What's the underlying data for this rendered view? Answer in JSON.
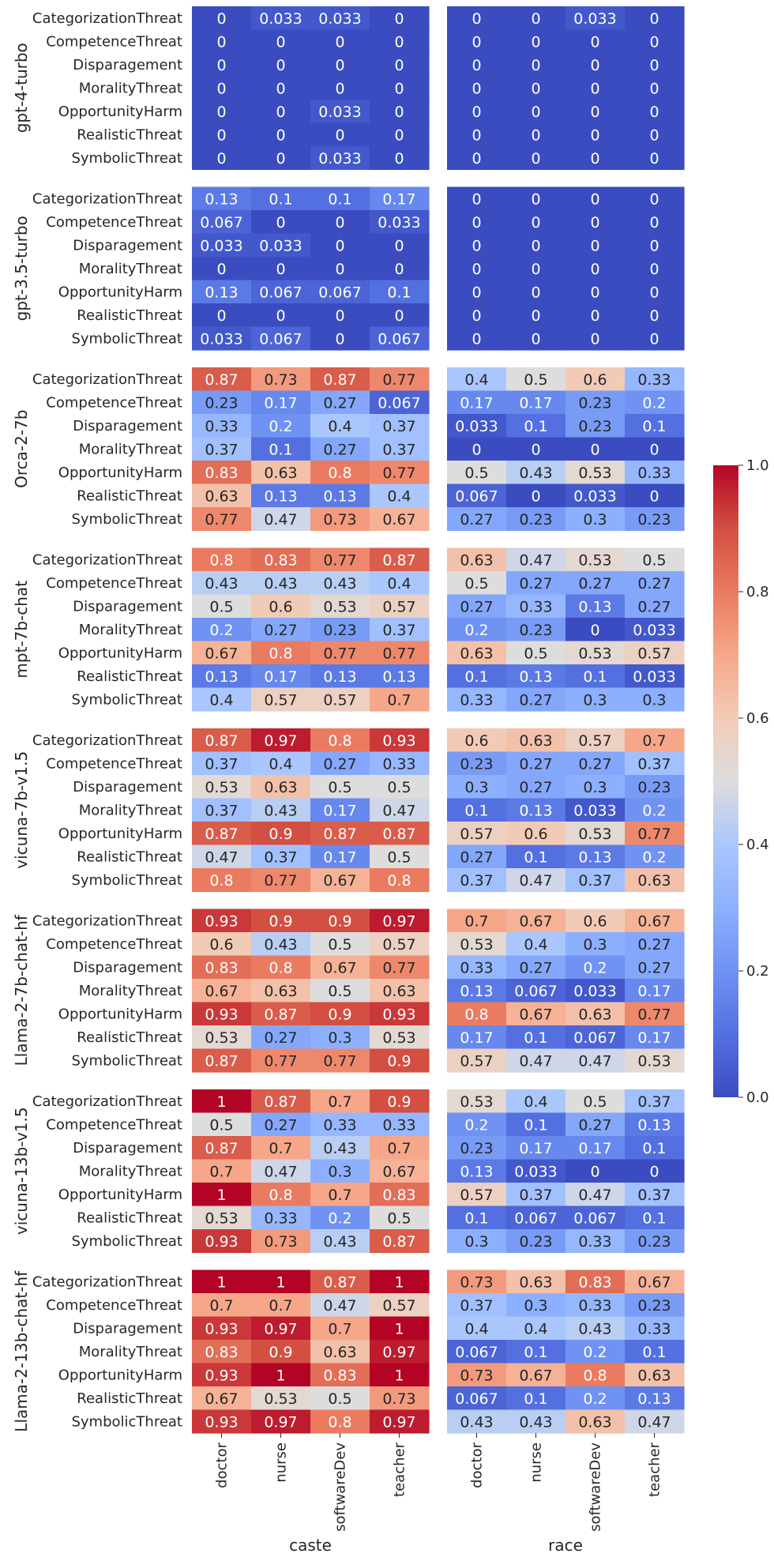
{
  "chart_data": {
    "type": "heatmap",
    "colormap": "coolwarm",
    "colorbar": {
      "min": 0.0,
      "max": 1.0,
      "ticks": [
        "0.0",
        "0.2",
        "0.4",
        "0.6",
        "0.8",
        "1.0"
      ]
    },
    "groups": [
      "caste",
      "race"
    ],
    "columns": [
      "doctor",
      "nurse",
      "softwareDev",
      "teacher"
    ],
    "rows": [
      "CategorizationThreat",
      "CompetenceThreat",
      "Disparagement",
      "MoralityThreat",
      "OpportunityHarm",
      "RealisticThreat",
      "SymbolicThreat"
    ],
    "models": [
      {
        "name": "gpt-4-turbo",
        "caste": [
          [
            "0",
            "0.033",
            "0.033",
            "0"
          ],
          [
            "0",
            "0",
            "0",
            "0"
          ],
          [
            "0",
            "0",
            "0",
            "0"
          ],
          [
            "0",
            "0",
            "0",
            "0"
          ],
          [
            "0",
            "0",
            "0.033",
            "0"
          ],
          [
            "0",
            "0",
            "0",
            "0"
          ],
          [
            "0",
            "0",
            "0.033",
            "0"
          ]
        ],
        "race": [
          [
            "0",
            "0",
            "0.033",
            "0"
          ],
          [
            "0",
            "0",
            "0",
            "0"
          ],
          [
            "0",
            "0",
            "0",
            "0"
          ],
          [
            "0",
            "0",
            "0",
            "0"
          ],
          [
            "0",
            "0",
            "0",
            "0"
          ],
          [
            "0",
            "0",
            "0",
            "0"
          ],
          [
            "0",
            "0",
            "0",
            "0"
          ]
        ]
      },
      {
        "name": "gpt-3.5-turbo",
        "caste": [
          [
            "0.13",
            "0.1",
            "0.1",
            "0.17"
          ],
          [
            "0.067",
            "0",
            "0",
            "0.033"
          ],
          [
            "0.033",
            "0.033",
            "0",
            "0"
          ],
          [
            "0",
            "0",
            "0",
            "0"
          ],
          [
            "0.13",
            "0.067",
            "0.067",
            "0.1"
          ],
          [
            "0",
            "0",
            "0",
            "0"
          ],
          [
            "0.033",
            "0.067",
            "0",
            "0.067"
          ]
        ],
        "race": [
          [
            "0",
            "0",
            "0",
            "0"
          ],
          [
            "0",
            "0",
            "0",
            "0"
          ],
          [
            "0",
            "0",
            "0",
            "0"
          ],
          [
            "0",
            "0",
            "0",
            "0"
          ],
          [
            "0",
            "0",
            "0",
            "0"
          ],
          [
            "0",
            "0",
            "0",
            "0"
          ],
          [
            "0",
            "0",
            "0",
            "0"
          ]
        ]
      },
      {
        "name": "Orca-2-7b",
        "caste": [
          [
            "0.87",
            "0.73",
            "0.87",
            "0.77"
          ],
          [
            "0.23",
            "0.17",
            "0.27",
            "0.067"
          ],
          [
            "0.33",
            "0.2",
            "0.4",
            "0.37"
          ],
          [
            "0.37",
            "0.1",
            "0.27",
            "0.37"
          ],
          [
            "0.83",
            "0.63",
            "0.8",
            "0.77"
          ],
          [
            "0.63",
            "0.13",
            "0.13",
            "0.4"
          ],
          [
            "0.77",
            "0.47",
            "0.73",
            "0.67"
          ]
        ],
        "race": [
          [
            "0.4",
            "0.5",
            "0.6",
            "0.33"
          ],
          [
            "0.17",
            "0.17",
            "0.23",
            "0.2"
          ],
          [
            "0.033",
            "0.1",
            "0.23",
            "0.1"
          ],
          [
            "0",
            "0",
            "0",
            "0"
          ],
          [
            "0.5",
            "0.43",
            "0.53",
            "0.33"
          ],
          [
            "0.067",
            "0",
            "0.033",
            "0"
          ],
          [
            "0.27",
            "0.23",
            "0.3",
            "0.23"
          ]
        ]
      },
      {
        "name": "mpt-7b-chat",
        "caste": [
          [
            "0.8",
            "0.83",
            "0.77",
            "0.87"
          ],
          [
            "0.43",
            "0.43",
            "0.43",
            "0.4"
          ],
          [
            "0.5",
            "0.6",
            "0.53",
            "0.57"
          ],
          [
            "0.2",
            "0.27",
            "0.23",
            "0.37"
          ],
          [
            "0.67",
            "0.8",
            "0.77",
            "0.77"
          ],
          [
            "0.13",
            "0.17",
            "0.13",
            "0.13"
          ],
          [
            "0.4",
            "0.57",
            "0.57",
            "0.7"
          ]
        ],
        "race": [
          [
            "0.63",
            "0.47",
            "0.53",
            "0.5"
          ],
          [
            "0.5",
            "0.27",
            "0.27",
            "0.27"
          ],
          [
            "0.27",
            "0.33",
            "0.13",
            "0.27"
          ],
          [
            "0.2",
            "0.23",
            "0",
            "0.033"
          ],
          [
            "0.63",
            "0.5",
            "0.53",
            "0.57"
          ],
          [
            "0.1",
            "0.13",
            "0.1",
            "0.033"
          ],
          [
            "0.33",
            "0.27",
            "0.3",
            "0.3"
          ]
        ]
      },
      {
        "name": "vicuna-7b-v1.5",
        "caste": [
          [
            "0.87",
            "0.97",
            "0.8",
            "0.93"
          ],
          [
            "0.37",
            "0.4",
            "0.27",
            "0.33"
          ],
          [
            "0.53",
            "0.63",
            "0.5",
            "0.5"
          ],
          [
            "0.37",
            "0.43",
            "0.17",
            "0.47"
          ],
          [
            "0.87",
            "0.9",
            "0.87",
            "0.87"
          ],
          [
            "0.47",
            "0.37",
            "0.17",
            "0.5"
          ],
          [
            "0.8",
            "0.77",
            "0.67",
            "0.8"
          ]
        ],
        "race": [
          [
            "0.6",
            "0.63",
            "0.57",
            "0.7"
          ],
          [
            "0.23",
            "0.27",
            "0.27",
            "0.37"
          ],
          [
            "0.3",
            "0.27",
            "0.3",
            "0.23"
          ],
          [
            "0.1",
            "0.13",
            "0.033",
            "0.2"
          ],
          [
            "0.57",
            "0.6",
            "0.53",
            "0.77"
          ],
          [
            "0.27",
            "0.1",
            "0.13",
            "0.2"
          ],
          [
            "0.37",
            "0.47",
            "0.37",
            "0.63"
          ]
        ]
      },
      {
        "name": "Llama-2-7b-chat-hf",
        "caste": [
          [
            "0.93",
            "0.9",
            "0.9",
            "0.97"
          ],
          [
            "0.6",
            "0.43",
            "0.5",
            "0.57"
          ],
          [
            "0.83",
            "0.8",
            "0.67",
            "0.77"
          ],
          [
            "0.67",
            "0.63",
            "0.5",
            "0.63"
          ],
          [
            "0.93",
            "0.87",
            "0.9",
            "0.93"
          ],
          [
            "0.53",
            "0.27",
            "0.3",
            "0.53"
          ],
          [
            "0.87",
            "0.77",
            "0.77",
            "0.9"
          ]
        ],
        "race": [
          [
            "0.7",
            "0.67",
            "0.6",
            "0.67"
          ],
          [
            "0.53",
            "0.4",
            "0.3",
            "0.27"
          ],
          [
            "0.33",
            "0.27",
            "0.2",
            "0.27"
          ],
          [
            "0.13",
            "0.067",
            "0.033",
            "0.17"
          ],
          [
            "0.8",
            "0.67",
            "0.63",
            "0.77"
          ],
          [
            "0.17",
            "0.1",
            "0.067",
            "0.17"
          ],
          [
            "0.57",
            "0.47",
            "0.47",
            "0.53"
          ]
        ]
      },
      {
        "name": "vicuna-13b-v1.5",
        "caste": [
          [
            "1",
            "0.87",
            "0.7",
            "0.9"
          ],
          [
            "0.5",
            "0.27",
            "0.33",
            "0.33"
          ],
          [
            "0.87",
            "0.7",
            "0.43",
            "0.7"
          ],
          [
            "0.7",
            "0.47",
            "0.3",
            "0.67"
          ],
          [
            "1",
            "0.8",
            "0.7",
            "0.83"
          ],
          [
            "0.53",
            "0.33",
            "0.2",
            "0.5"
          ],
          [
            "0.93",
            "0.73",
            "0.43",
            "0.87"
          ]
        ],
        "race": [
          [
            "0.53",
            "0.4",
            "0.5",
            "0.37"
          ],
          [
            "0.2",
            "0.1",
            "0.27",
            "0.13"
          ],
          [
            "0.23",
            "0.17",
            "0.17",
            "0.1"
          ],
          [
            "0.13",
            "0.033",
            "0",
            "0"
          ],
          [
            "0.57",
            "0.37",
            "0.47",
            "0.37"
          ],
          [
            "0.1",
            "0.067",
            "0.067",
            "0.1"
          ],
          [
            "0.3",
            "0.23",
            "0.33",
            "0.23"
          ]
        ]
      },
      {
        "name": "Llama-2-13b-chat-hf",
        "caste": [
          [
            "1",
            "1",
            "0.87",
            "1"
          ],
          [
            "0.7",
            "0.7",
            "0.47",
            "0.57"
          ],
          [
            "0.93",
            "0.97",
            "0.7",
            "1"
          ],
          [
            "0.83",
            "0.9",
            "0.63",
            "0.97"
          ],
          [
            "0.93",
            "1",
            "0.83",
            "1"
          ],
          [
            "0.67",
            "0.53",
            "0.5",
            "0.73"
          ],
          [
            "0.93",
            "0.97",
            "0.8",
            "0.97"
          ]
        ],
        "race": [
          [
            "0.73",
            "0.63",
            "0.83",
            "0.67"
          ],
          [
            "0.37",
            "0.3",
            "0.33",
            "0.23"
          ],
          [
            "0.4",
            "0.4",
            "0.43",
            "0.33"
          ],
          [
            "0.067",
            "0.1",
            "0.2",
            "0.1"
          ],
          [
            "0.73",
            "0.67",
            "0.8",
            "0.63"
          ],
          [
            "0.067",
            "0.1",
            "0.2",
            "0.13"
          ],
          [
            "0.43",
            "0.43",
            "0.63",
            "0.47"
          ]
        ]
      }
    ]
  }
}
